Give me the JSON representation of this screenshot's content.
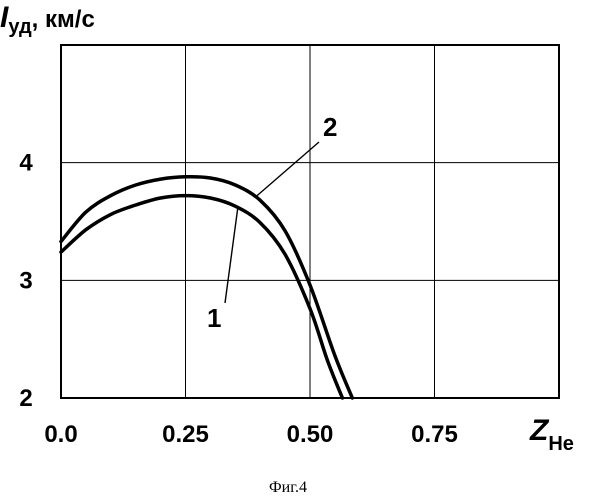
{
  "chart_data": {
    "type": "line",
    "title": "",
    "ylabel": {
      "symbol": "I",
      "subscript": "уд",
      "unit": ", км/с"
    },
    "xlabel": {
      "symbol": "Z",
      "subscript": "He"
    },
    "xlim": [
      0.0,
      1.0
    ],
    "ylim": [
      2.0,
      5.0
    ],
    "x_ticks": [
      0.0,
      0.25,
      0.5,
      0.75
    ],
    "x_tick_labels": [
      "0.0",
      "0.25",
      "0.50",
      "0.75"
    ],
    "y_ticks": [
      2,
      3,
      4
    ],
    "y_tick_labels": [
      "2",
      "3",
      "4"
    ],
    "grid": true,
    "series": [
      {
        "name": "2",
        "x": [
          0.0,
          0.05,
          0.1,
          0.15,
          0.2,
          0.25,
          0.3,
          0.35,
          0.4,
          0.45,
          0.5,
          0.55,
          0.585
        ],
        "y": [
          3.33,
          3.58,
          3.72,
          3.81,
          3.86,
          3.88,
          3.87,
          3.81,
          3.68,
          3.42,
          2.96,
          2.36,
          2.0
        ]
      },
      {
        "name": "1",
        "x": [
          0.0,
          0.05,
          0.1,
          0.15,
          0.2,
          0.25,
          0.3,
          0.35,
          0.4,
          0.45,
          0.5,
          0.535,
          0.565
        ],
        "y": [
          3.24,
          3.43,
          3.56,
          3.64,
          3.7,
          3.72,
          3.7,
          3.63,
          3.49,
          3.22,
          2.76,
          2.32,
          2.0
        ]
      }
    ]
  },
  "caption": "Фиг.4"
}
